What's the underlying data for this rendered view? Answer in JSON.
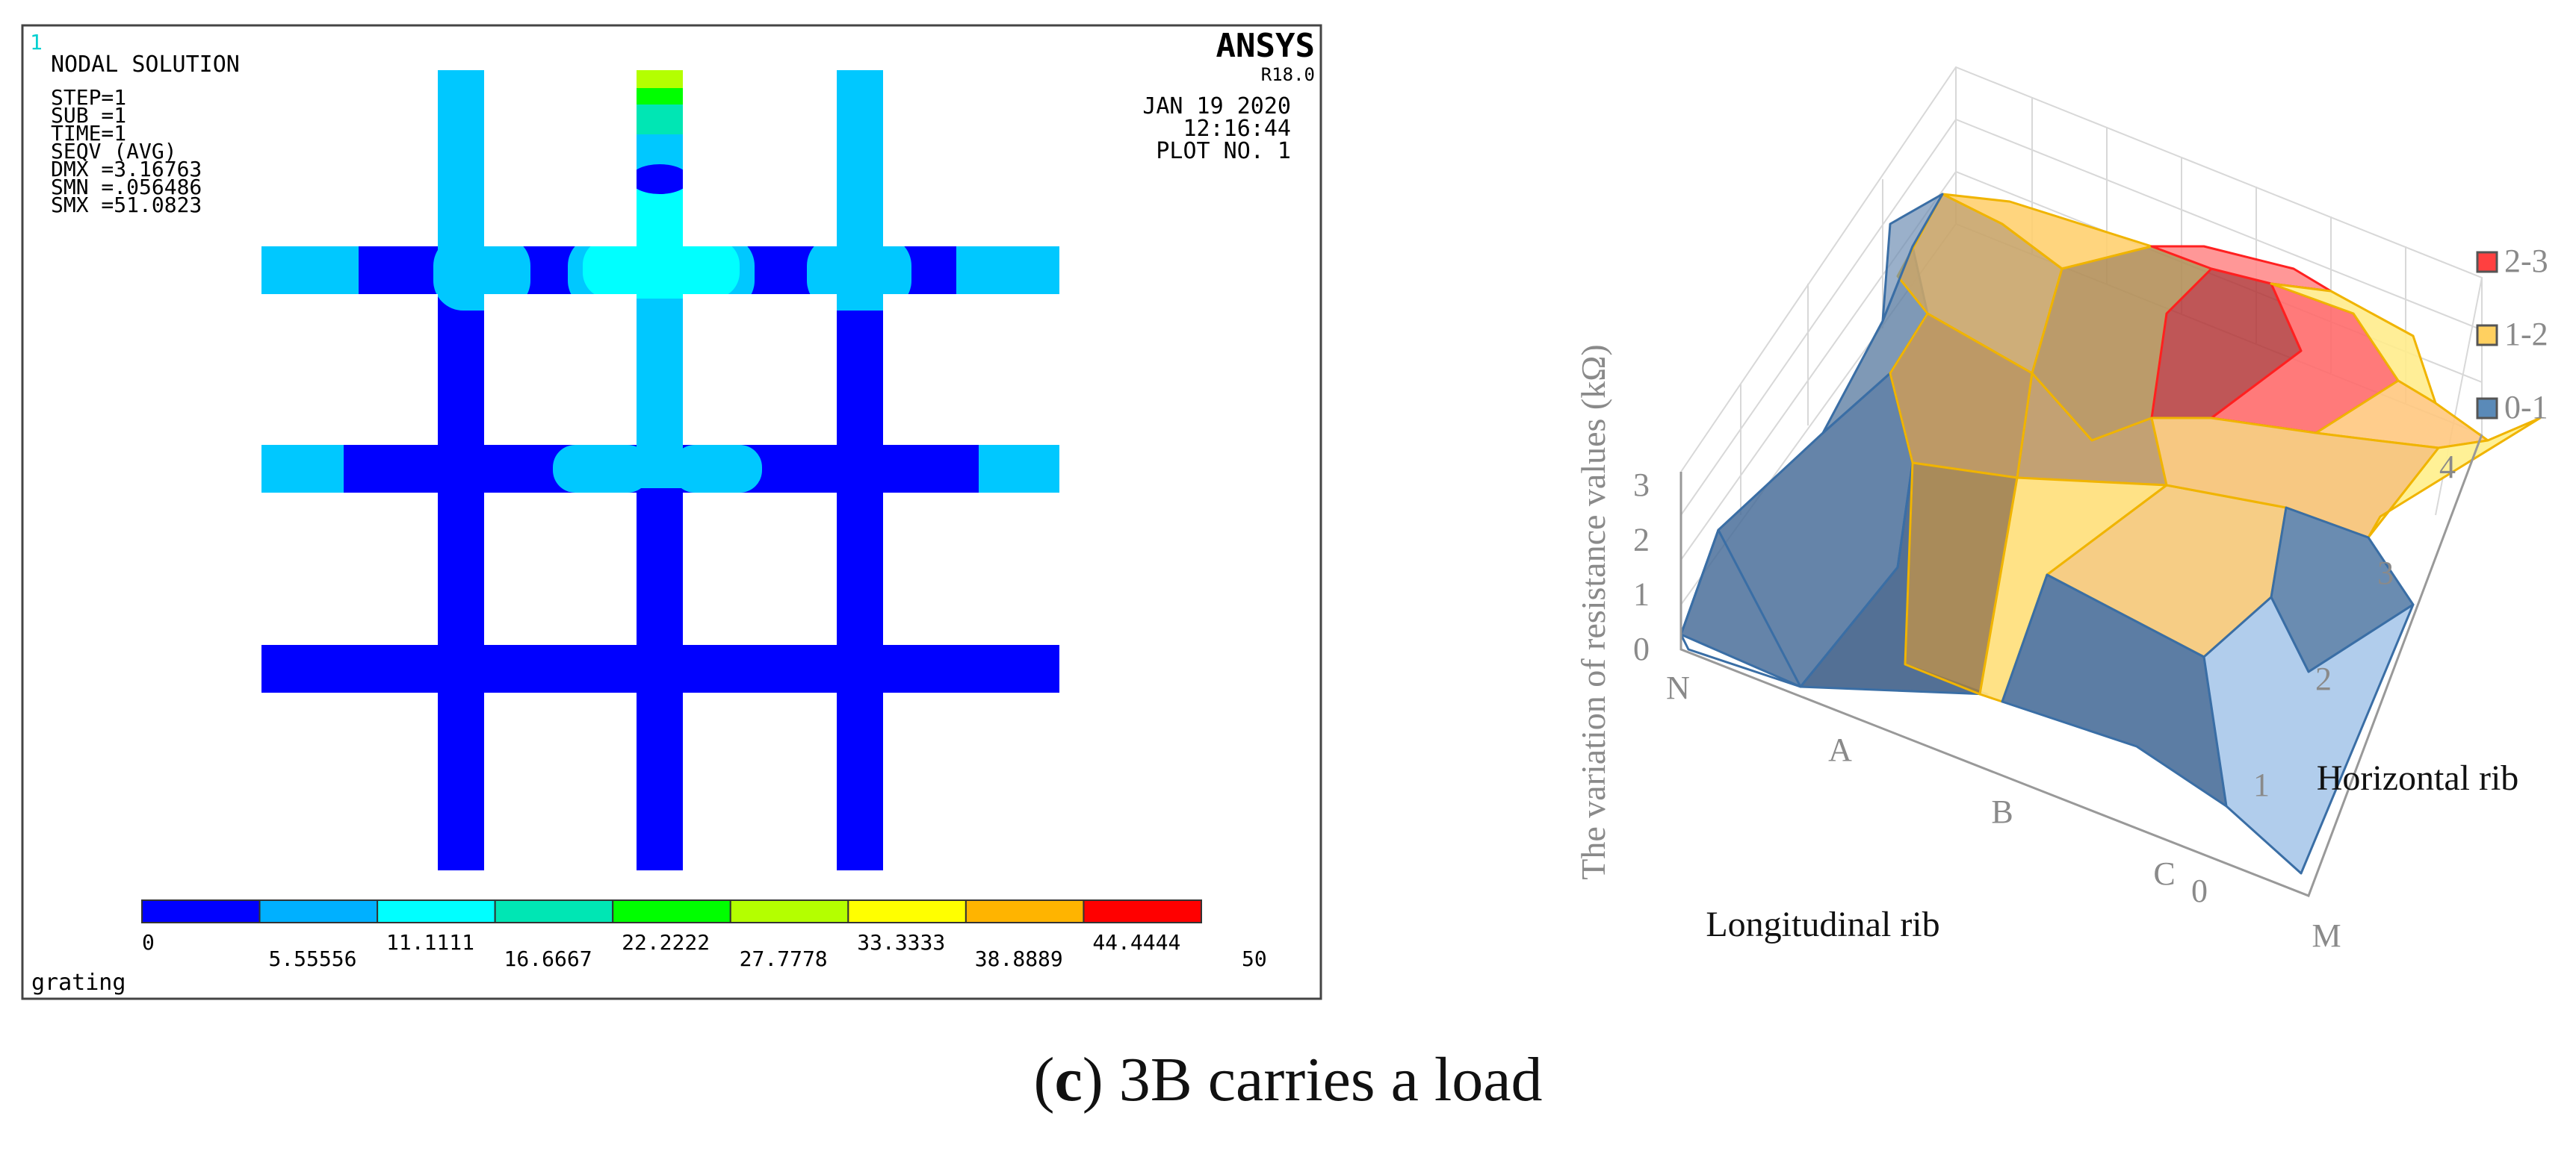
{
  "caption": {
    "open": "(",
    "letter": "c",
    "rest": ") 3B carries a load"
  },
  "chart_data": [
    {
      "type": "heatmap",
      "title": "NODAL SOLUTION",
      "window_number": "1",
      "program": "ANSYS",
      "version": "R18.0",
      "header_lines": [
        "STEP=1",
        "SUB =1",
        "TIME=1",
        "SEQV     (AVG)",
        "DMX =3.16763",
        "SMN =.056486",
        "SMX =51.0823"
      ],
      "date": "JAN 19 2020",
      "time": "12:16:44",
      "plot_no": "PLOT NO.   1",
      "model_name": "grating",
      "legend": {
        "colors": [
          "#0000ff",
          "#00b0ff",
          "#00ffff",
          "#00e6b4",
          "#00ff00",
          "#b4ff00",
          "#ffff00",
          "#ffb400",
          "#ff0000"
        ],
        "ticks": [
          "0",
          "5.55556",
          "11.1111",
          "16.6667",
          "22.2222",
          "27.7778",
          "33.3333",
          "38.8889",
          "44.4444",
          "50"
        ]
      }
    },
    {
      "type": "area",
      "subtype": "3d-surface",
      "ylabel": "The variation of resistance values (kΩ)",
      "xlabel": "Longitudinal rib",
      "x2label": "Horizontal rib",
      "zticks": [
        "0",
        "1",
        "2",
        "3"
      ],
      "longitudinal_ticks": [
        "N",
        "A",
        "B",
        "C",
        "M"
      ],
      "horizontal_ticks": [
        "0",
        "1",
        "2",
        "3",
        "4"
      ],
      "zlim": [
        0,
        3
      ],
      "legend": [
        {
          "label": "2-3",
          "color": "#ff4040"
        },
        {
          "label": "1-2",
          "color": "#ffd060"
        },
        {
          "label": "0-1",
          "color": "#5a8ab8"
        }
      ]
    }
  ]
}
